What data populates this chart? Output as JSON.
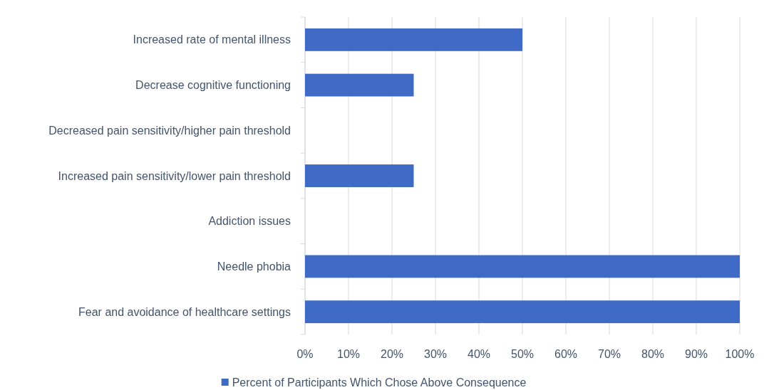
{
  "chart_data": {
    "type": "bar",
    "orientation": "horizontal",
    "categories": [
      "Increased rate of mental illness",
      "Decrease cognitive functioning",
      "Decreased pain sensitivity/higher pain threshold",
      "Increased pain sensitivity/lower pain threshold",
      "Addiction issues",
      "Needle phobia",
      "Fear and avoidance of healthcare settings"
    ],
    "series": [
      {
        "name": "Percent of Participants Which Chose Above Consequence",
        "color": "#3f6bc6",
        "values": [
          50,
          25,
          0,
          25,
          0,
          100,
          100
        ]
      }
    ],
    "xlim": [
      0,
      100
    ],
    "xticks": [
      {
        "value": 0,
        "label": "0%"
      },
      {
        "value": 10,
        "label": "10%"
      },
      {
        "value": 20,
        "label": "20%"
      },
      {
        "value": 30,
        "label": "30%"
      },
      {
        "value": 40,
        "label": "40%"
      },
      {
        "value": 50,
        "label": "50%"
      },
      {
        "value": 60,
        "label": "60%"
      },
      {
        "value": 70,
        "label": "70%"
      },
      {
        "value": 80,
        "label": "80%"
      },
      {
        "value": 90,
        "label": "90%"
      },
      {
        "value": 100,
        "label": "100%"
      }
    ],
    "grid": "x",
    "legend": "bottom"
  }
}
